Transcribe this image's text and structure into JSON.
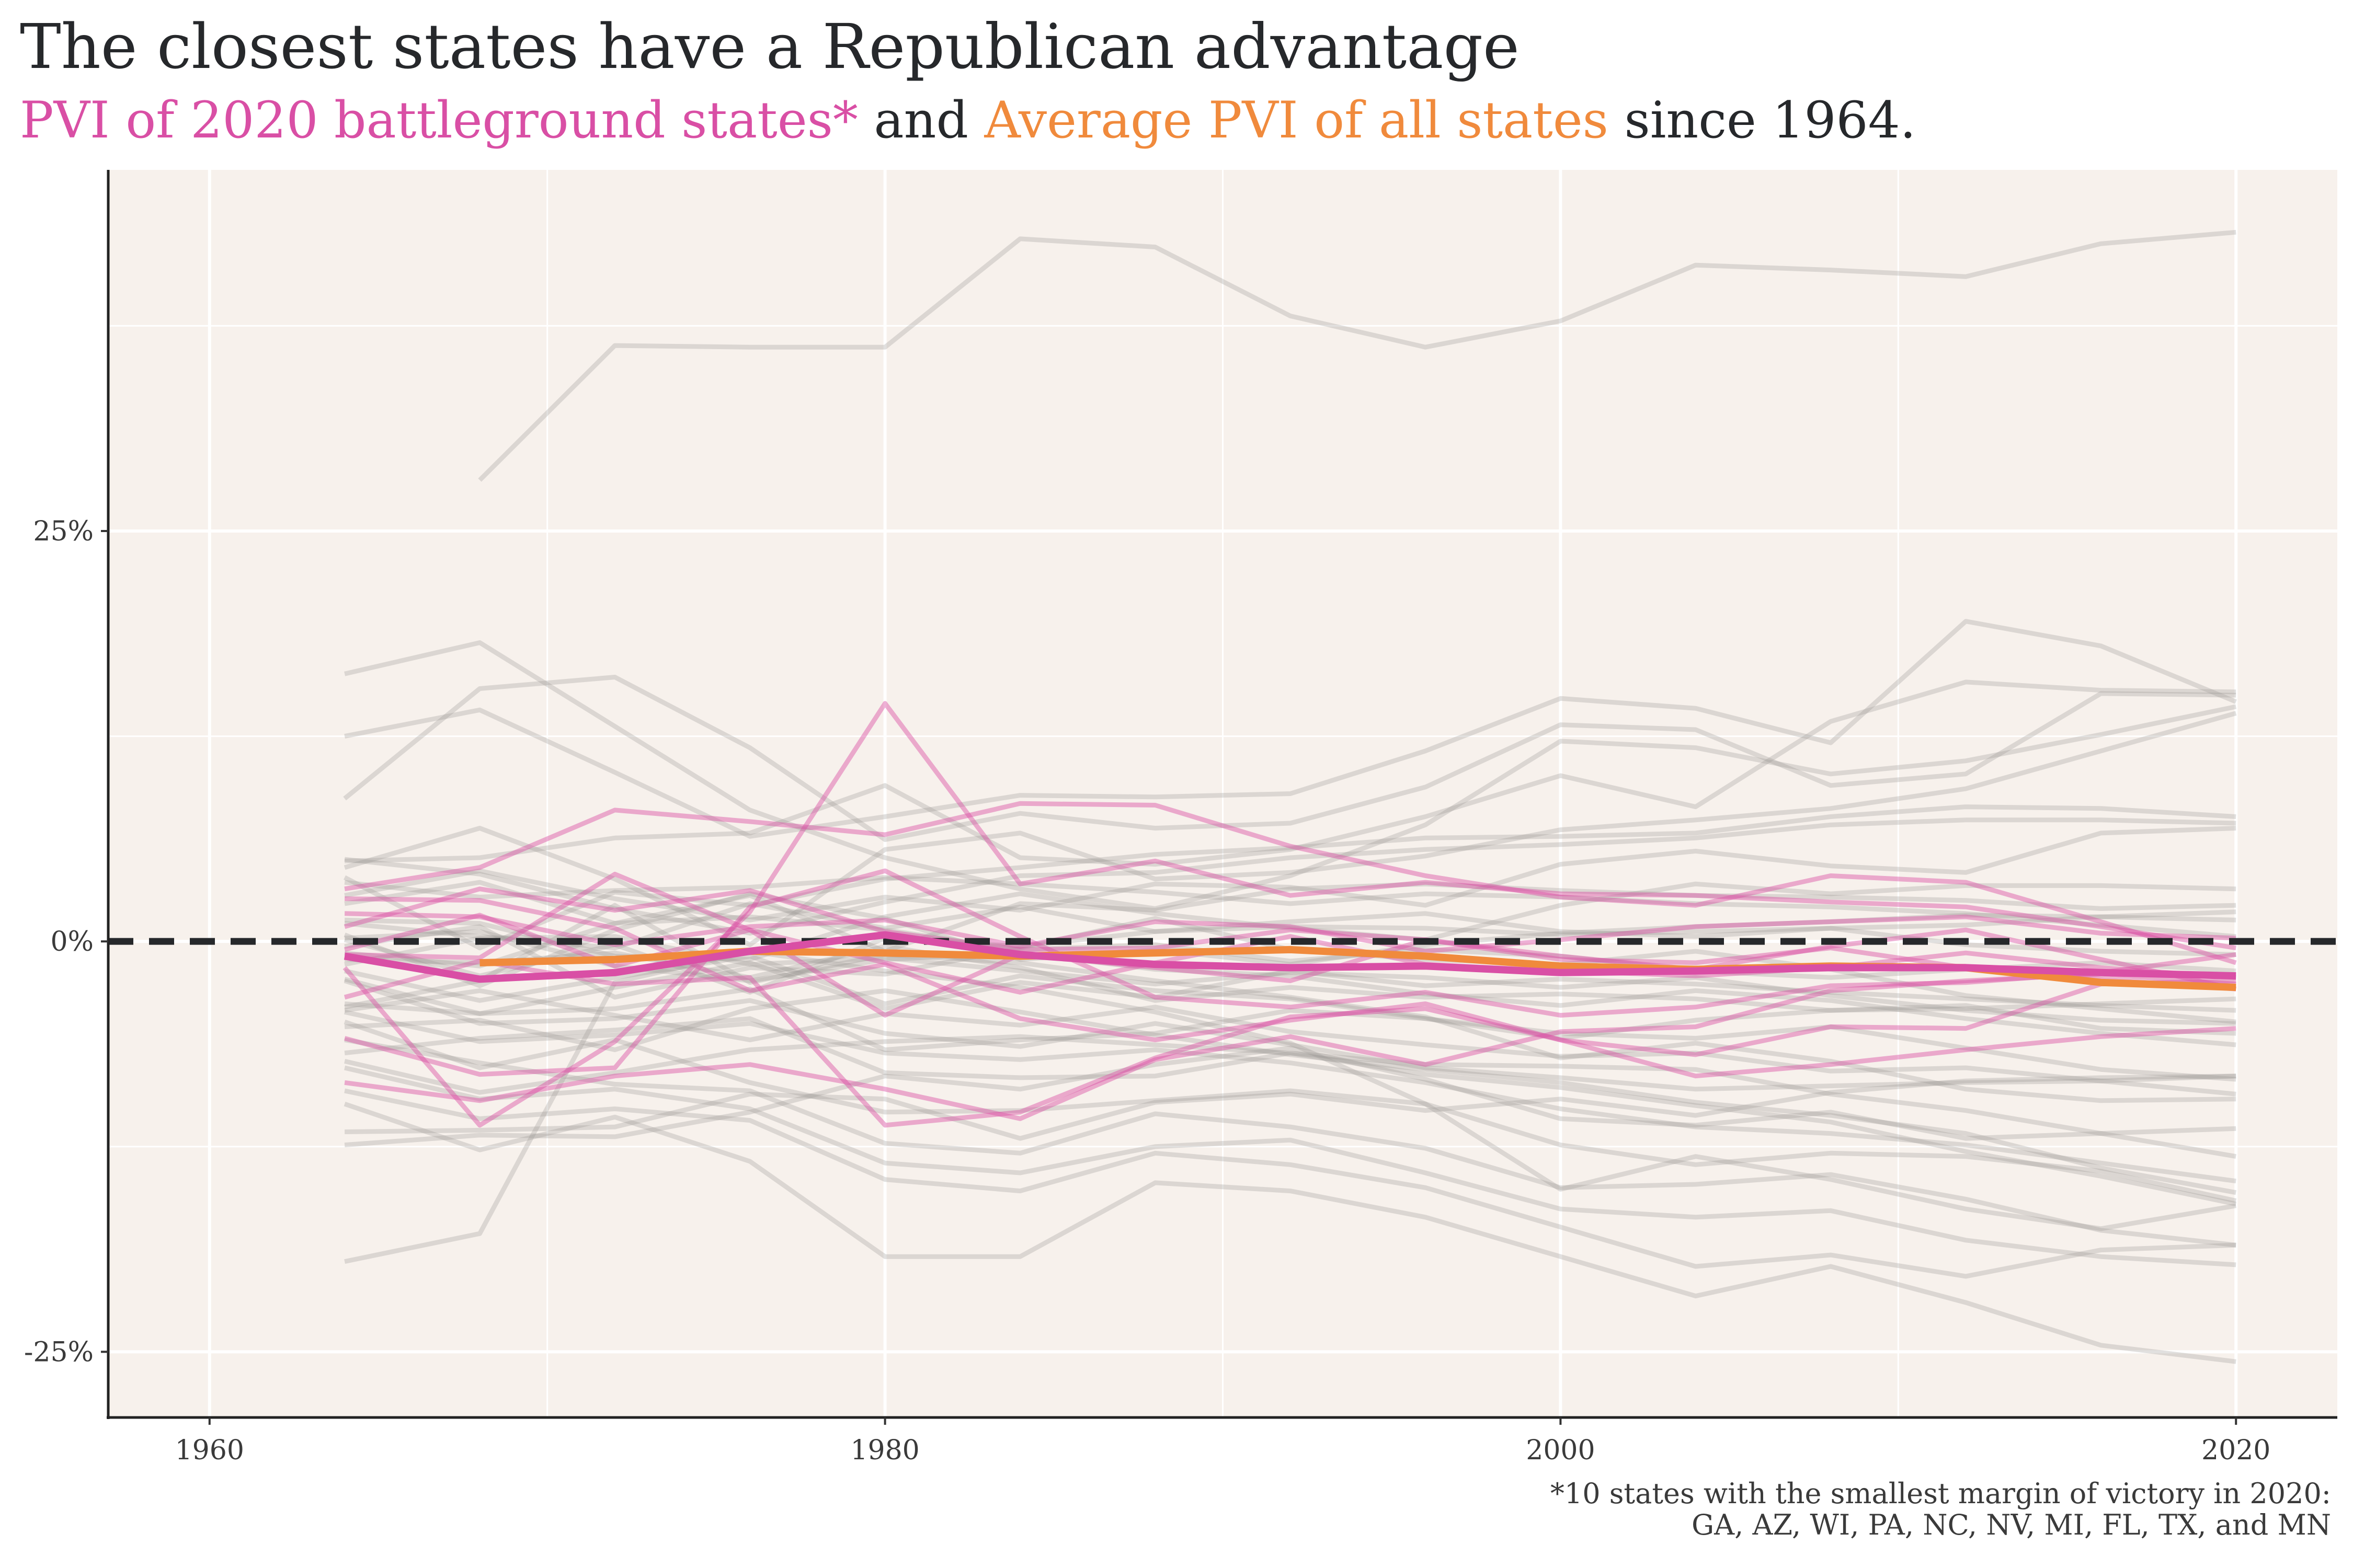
{
  "title": "The closest states have a Republican advantage",
  "subtitle": {
    "part1": "PVI of 2020 battleground states*",
    "part2": " and ",
    "part3": "Average PVI of all states",
    "part4": " since 1964."
  },
  "caption": {
    "line1": "*10 states with the smallest margin of victory in 2020:",
    "line2": "GA, AZ, WI, PA, NC, NV, MI, FL, TX, and MN"
  },
  "colors": {
    "panel_bg": "#f7f1ec",
    "grid": "#ffffff",
    "other_states": "#9b9794",
    "battleground": "#d94fa5",
    "average": "#f08a3c",
    "zero_line": "#26282b"
  },
  "chart_data": {
    "type": "line",
    "title": "The closest states have a Republican advantage",
    "subtitle": "PVI of 2020 battleground states* and Average PVI of all states since 1964.",
    "xlabel": "",
    "ylabel": "",
    "xlim": [
      1957,
      2023
    ],
    "ylim": [
      -29,
      47
    ],
    "x_ticks": [
      1960,
      1980,
      2000,
      2020
    ],
    "x_tick_labels": [
      "1960",
      "1980",
      "2000",
      "2020"
    ],
    "y_ticks": [
      -25,
      0,
      25
    ],
    "y_tick_labels": [
      "-25%",
      "0%",
      "25%"
    ],
    "grid": true,
    "reference_line": {
      "y": 0,
      "style": "dashed"
    },
    "years": [
      1964,
      1968,
      1972,
      1976,
      1980,
      1984,
      1988,
      1992,
      1996,
      2000,
      2004,
      2008,
      2012,
      2016,
      2020
    ],
    "average": [
      null,
      -1.3,
      -1.1,
      -0.6,
      -0.7,
      -0.9,
      -0.7,
      -0.5,
      -0.9,
      -1.5,
      -1.7,
      -1.5,
      -1.6,
      -2.5,
      -2.8
    ],
    "battleground_average": [
      -0.9,
      -2.3,
      -1.9,
      -0.6,
      0.4,
      -0.8,
      -1.4,
      -1.6,
      -1.5,
      -1.9,
      -1.8,
      -1.6,
      -1.6,
      -1.9,
      -2.1
    ],
    "battleground": [
      [
        3.2,
        4.5,
        8.0,
        7.3,
        6.5,
        8.4,
        8.3,
        5.8,
        4.0,
        2.7,
        2.2,
        4.0,
        3.6,
        1.2,
        -1.3
      ],
      [
        -1.6,
        -11.2,
        -6.1,
        1.8,
        14.5,
        3.5,
        4.9,
        2.8,
        3.6,
        2.9,
        2.8,
        2.4,
        2.1,
        0.9,
        -0.4
      ],
      [
        -5.9,
        -8.1,
        -7.7,
        2.1,
        4.3,
        0.3,
        -3.4,
        -4.0,
        -3.1,
        -4.5,
        -4.0,
        -2.7,
        -2.5,
        -1.9,
        -0.8
      ],
      [
        1.7,
        1.5,
        -0.2,
        0.9,
        1.3,
        -0.3,
        1.2,
        0.9,
        -0.6,
        0.1,
        0.9,
        1.2,
        1.5,
        0.5,
        0.2
      ],
      [
        -8.6,
        -9.7,
        -8.2,
        -7.5,
        -9.0,
        -10.8,
        -7.2,
        -5.8,
        -7.5,
        -5.5,
        -5.2,
        -3.0,
        -2.4,
        -2.0,
        -2.6
      ],
      [
        2.6,
        2.5,
        0.8,
        -3.0,
        -1.4,
        -4.7,
        -6.0,
        -4.8,
        -3.8,
        -6.0,
        -6.9,
        -5.2,
        -5.3,
        -2.6,
        -2.4
      ],
      [
        0.9,
        3.2,
        1.9,
        3.1,
        0.6,
        -0.5,
        -0.4,
        0.7,
        0.1,
        -1.1,
        -1.3,
        -0.4,
        -1.6,
        -2.3,
        -2.9
      ],
      [
        -0.8,
        -1.0,
        4.1,
        0.7,
        -4.5,
        -0.8,
        -1.6,
        -2.4,
        0.1,
        -0.9,
        -1.7,
        -0.3,
        0.7,
        -1.1,
        -2.9
      ],
      [
        -3.4,
        -1.2,
        -2.6,
        -2.2,
        -11.2,
        -10.4,
        -7.1,
        -4.6,
        -4.1,
        -6.0,
        -8.2,
        -7.5,
        -6.6,
        -5.8,
        -5.3
      ],
      [
        -0.5,
        1.6,
        -1.5,
        0.7,
        -1.3,
        -3.1,
        -1.3,
        0.3,
        -1.4,
        -1.8,
        -2.1,
        -1.6,
        -0.7,
        -1.6,
        -2.2
      ]
    ],
    "other_states": [
      [
        null,
        28.1,
        36.3,
        36.2,
        36.2,
        42.8,
        42.3,
        38.1,
        36.2,
        37.8,
        41.2,
        40.9,
        40.5,
        42.5,
        43.2
      ],
      [
        16.3,
        18.2,
        13.1,
        8.0,
        5.1,
        3.2,
        2.0,
        4.0,
        7.1,
        12.2,
        11.8,
        10.2,
        11.0,
        12.6,
        14.3
      ],
      [
        12.5,
        14.1,
        10.3,
        6.4,
        7.6,
        8.9,
        8.8,
        9.0,
        11.6,
        14.8,
        14.2,
        12.1,
        19.5,
        18.0,
        14.6
      ],
      [
        8.7,
        15.4,
        16.1,
        11.8,
        6.2,
        7.8,
        6.9,
        7.2,
        9.4,
        13.2,
        12.9,
        9.5,
        10.2,
        15.1,
        15.0
      ],
      [
        4.9,
        5.1,
        6.3,
        6.6,
        9.5,
        5.1,
        4.7,
        5.6,
        7.6,
        10.1,
        8.2,
        13.4,
        15.8,
        15.3,
        15.2
      ],
      [
        4.5,
        6.9,
        3.8,
        -0.2,
        5.6,
        6.6,
        3.8,
        4.2,
        5.2,
        6.8,
        7.4,
        8.1,
        9.3,
        11.6,
        13.9
      ],
      [
        3.9,
        -0.4,
        3.0,
        2.2,
        3.8,
        4.5,
        5.3,
        5.7,
        6.3,
        6.4,
        6.6,
        7.6,
        8.2,
        8.1,
        7.6
      ],
      [
        2.8,
        4.3,
        2.6,
        1.3,
        2.7,
        1.9,
        3.5,
        3.3,
        2.2,
        4.7,
        5.5,
        4.6,
        4.2,
        6.6,
        6.9
      ],
      [
        1.3,
        1.1,
        -0.9,
        -1.1,
        1.5,
        2.9,
        1.7,
        0.8,
        0.1,
        2.2,
        3.5,
        2.9,
        3.4,
        3.4,
        3.2
      ],
      [
        0.4,
        -2.7,
        0.7,
        2.9,
        1.4,
        -1.1,
        -0.5,
        -1.4,
        -0.2,
        0.5,
        0.9,
        1.2,
        1.6,
        1.5,
        1.3
      ],
      [
        -0.3,
        0.9,
        -3.4,
        -1.6,
        -2.0,
        -0.4,
        1.4,
        -0.5,
        -1.1,
        -1.4,
        -0.6,
        -1.7,
        -3.3,
        -4.1,
        -4.9
      ],
      [
        -1.8,
        -3.6,
        -2.2,
        -0.9,
        -3.8,
        -2.1,
        -3.0,
        -3.5,
        -4.7,
        -5.6,
        -5.9,
        -5.2,
        -6.5,
        -7.8,
        -8.4
      ],
      [
        -2.4,
        -5.0,
        -4.7,
        -3.6,
        -5.6,
        -6.4,
        -5.0,
        -6.3,
        -7.7,
        -8.3,
        -9.0,
        -8.8,
        -8.6,
        -8.5,
        -8.2
      ],
      [
        -4.3,
        -6.1,
        -5.7,
        -5.0,
        -6.8,
        -7.2,
        -6.6,
        -7.4,
        -8.6,
        -10.2,
        -11.3,
        -11.7,
        -12.4,
        -13.5,
        -14.6
      ],
      [
        -4.9,
        -7.7,
        -6.0,
        -8.6,
        -10.4,
        -10.3,
        -9.7,
        -9.1,
        -9.9,
        -12.4,
        -13.6,
        -12.9,
        -13.1,
        -14.0,
        -15.8
      ],
      [
        -6.0,
        -7.4,
        -8.7,
        -9.1,
        -12.3,
        -12.9,
        -10.5,
        -11.3,
        -12.6,
        -15.0,
        -14.8,
        -14.2,
        -15.7,
        -17.6,
        -18.5
      ],
      [
        -7.7,
        -9.6,
        -9.0,
        -10.2,
        -13.5,
        -14.1,
        -12.5,
        -12.1,
        -14.1,
        -16.3,
        -16.8,
        -16.4,
        -18.2,
        -19.2,
        -19.7
      ],
      [
        -9.1,
        -10.8,
        -10.2,
        -10.9,
        -14.5,
        -15.2,
        -12.9,
        -13.6,
        -15.0,
        -17.4,
        -19.8,
        -19.1,
        -20.4,
        -18.8,
        -18.5
      ],
      [
        -9.9,
        -12.7,
        -10.7,
        -13.4,
        -19.2,
        -19.2,
        -14.7,
        -15.2,
        -16.8,
        -19.2,
        -21.6,
        -19.8,
        -22.0,
        -24.6,
        -25.6
      ],
      [
        -11.6,
        -11.5,
        -11.3,
        -9.3,
        -9.6,
        -12.0,
        -9.8,
        -9.3,
        -10.3,
        -9.6,
        -10.6,
        -9.2,
        -8.5,
        -8.3,
        -8.2
      ],
      [
        -12.4,
        -11.8,
        -11.9,
        -10.4,
        -8.2,
        -9.0,
        -7.5,
        -6.5,
        -8.4,
        -10.8,
        -11.2,
        -10.4,
        -12.0,
        -11.7,
        -11.4
      ],
      [
        -19.5,
        -17.8,
        -2.5,
        -0.6,
        -1.8,
        -2.8,
        -4.3,
        -6.2,
        -9.9,
        -15.1,
        -13.1,
        -14.5,
        -16.3,
        -17.5,
        -16.1
      ],
      [
        -1.1,
        -1.3,
        -0.7,
        -2.2,
        -0.3,
        -1.6,
        -3.6,
        -2.8,
        -3.4,
        -3.2,
        -3.5,
        -4.2,
        -3.9,
        -5.3,
        -5.6
      ],
      [
        0.2,
        0.6,
        -1.5,
        -2.4,
        -1.1,
        -0.7,
        -1.7,
        -2.1,
        -3.2,
        -3.9,
        -3.0,
        -3.6,
        -4.7,
        -5.6,
        -6.3
      ],
      [
        -0.7,
        -1.5,
        1.1,
        1.5,
        0.7,
        -0.5,
        -0.2,
        -1.2,
        -0.5,
        -0.9,
        -1.8,
        -2.2,
        -1.7,
        -1.3,
        -1.8
      ],
      [
        2.3,
        3.6,
        1.1,
        2.8,
        -0.6,
        2.3,
        1.9,
        3.2,
        3.5,
        3.1,
        2.8,
        2.7,
        2.5,
        2.0,
        2.2
      ],
      [
        -3.8,
        -4.4,
        -2.8,
        -1.3,
        -4.1,
        -2.5,
        -3.4,
        -1.8,
        -2.7,
        -2.3,
        -2.6,
        -3.1,
        -3.5,
        -3.9,
        -4.2
      ],
      [
        -6.8,
        -5.9,
        -5.4,
        -4.7,
        -8.0,
        -8.3,
        -8.2,
        -6.8,
        -7.5,
        -7.6,
        -7.8,
        -9.3,
        -10.3,
        -11.7,
        -13.1
      ],
      [
        -5.2,
        -4.8,
        -6.6,
        -4.1,
        -3.0,
        -4.3,
        -5.7,
        -6.9,
        -7.8,
        -8.6,
        -9.8,
        -10.6,
        -11.7,
        -13.8,
        -15.3
      ],
      [
        0.1,
        -2.1,
        -0.2,
        -3.1,
        0.2,
        -0.3,
        0.6,
        0.9,
        0.8,
        0.4,
        0.6,
        0.8,
        1.0,
        1.5,
        1.8
      ],
      [
        1.1,
        0.3,
        -0.4,
        2.3,
        0.8,
        2.1,
        0.6,
        1.2,
        1.7,
        0.6,
        0.3,
        0.8,
        -0.2,
        -0.6,
        -0.8
      ],
      [
        -2.3,
        -4.4,
        -4.1,
        -2.9,
        -6.6,
        -6.0,
        -5.6,
        -4.2,
        -4.7,
        -5.9,
        -4.8,
        -4.2,
        -4.1,
        -3.8,
        -3.5
      ],
      [
        -4.0,
        -2.4,
        2.2,
        -2.5,
        -0.8,
        -1.3,
        -2.4,
        -3.4,
        -4.6,
        -7.1,
        -6.2,
        -7.3,
        -9.0,
        -9.7,
        -9.6
      ],
      [
        3.6,
        2.7,
        3.1,
        3.3,
        3.9,
        3.5,
        3.0,
        2.3,
        2.9,
        2.7,
        2.3,
        2.1,
        1.7,
        1.0,
        0.3
      ],
      [
        -1.4,
        0.2,
        0.3,
        -1.4,
        -1.0,
        -1.8,
        -2.6,
        -1.9,
        -2.2,
        -2.8,
        -2.2,
        -3.3,
        -4.2,
        -4.8,
        -5.0
      ],
      [
        5.0,
        4.1,
        2.0,
        0.5,
        2.4,
        4.0,
        4.2,
        5.1,
        5.6,
        5.9,
        6.3,
        7.1,
        7.4,
        7.4,
        7.2
      ],
      [
        -7.3,
        -9.2,
        -8.0,
        -6.6,
        -6.1,
        -5.8,
        -6.3,
        -6.8,
        -8.1,
        -8.9,
        -10.0,
        -11.0,
        -12.8,
        -14.3,
        -16.0
      ],
      [
        -4.2,
        -3.0,
        -4.5,
        -6.0,
        -4.4,
        -5.1,
        -4.0,
        -5.5,
        -6.3,
        -7.0,
        -6.8,
        -7.9,
        -7.7,
        -8.5,
        -9.3
      ]
    ]
  }
}
